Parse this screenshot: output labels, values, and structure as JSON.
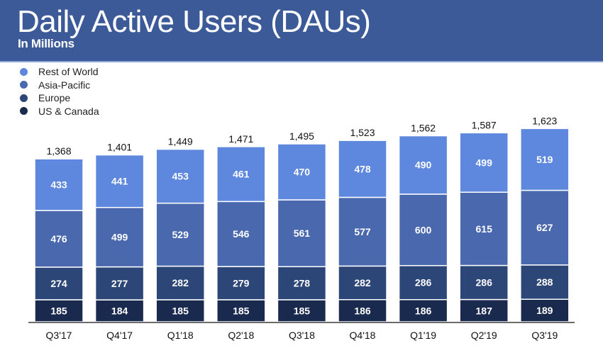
{
  "header": {
    "title": "Daily Active Users (DAUs)",
    "subtitle": "In Millions"
  },
  "chart_data": {
    "type": "bar",
    "stacked": true,
    "title": "Daily Active Users (DAUs)",
    "subtitle": "In Millions",
    "xlabel": "",
    "ylabel": "",
    "legend_position": "top-left",
    "grid": false,
    "categories": [
      "Q3'17",
      "Q4'17",
      "Q1'18",
      "Q2'18",
      "Q3'18",
      "Q4'18",
      "Q1'19",
      "Q2'19",
      "Q3'19"
    ],
    "series": [
      {
        "name": "US & Canada",
        "color": "#1a2a4f",
        "values": [
          185,
          184,
          185,
          185,
          185,
          186,
          186,
          187,
          189
        ]
      },
      {
        "name": "Europe",
        "color": "#2c4677",
        "values": [
          274,
          277,
          282,
          279,
          278,
          282,
          286,
          286,
          288
        ]
      },
      {
        "name": "Asia-Pacific",
        "color": "#4a68ad",
        "values": [
          476,
          499,
          529,
          546,
          561,
          577,
          600,
          615,
          627
        ]
      },
      {
        "name": "Rest of World",
        "color": "#5d88de",
        "values": [
          433,
          441,
          453,
          461,
          470,
          478,
          490,
          499,
          519
        ]
      }
    ],
    "totals": [
      "1,368",
      "1,401",
      "1,449",
      "1,471",
      "1,495",
      "1,523",
      "1,562",
      "1,587",
      "1,623"
    ],
    "legend": [
      "Rest of World",
      "Asia-Pacific",
      "Europe",
      "US & Canada"
    ]
  }
}
